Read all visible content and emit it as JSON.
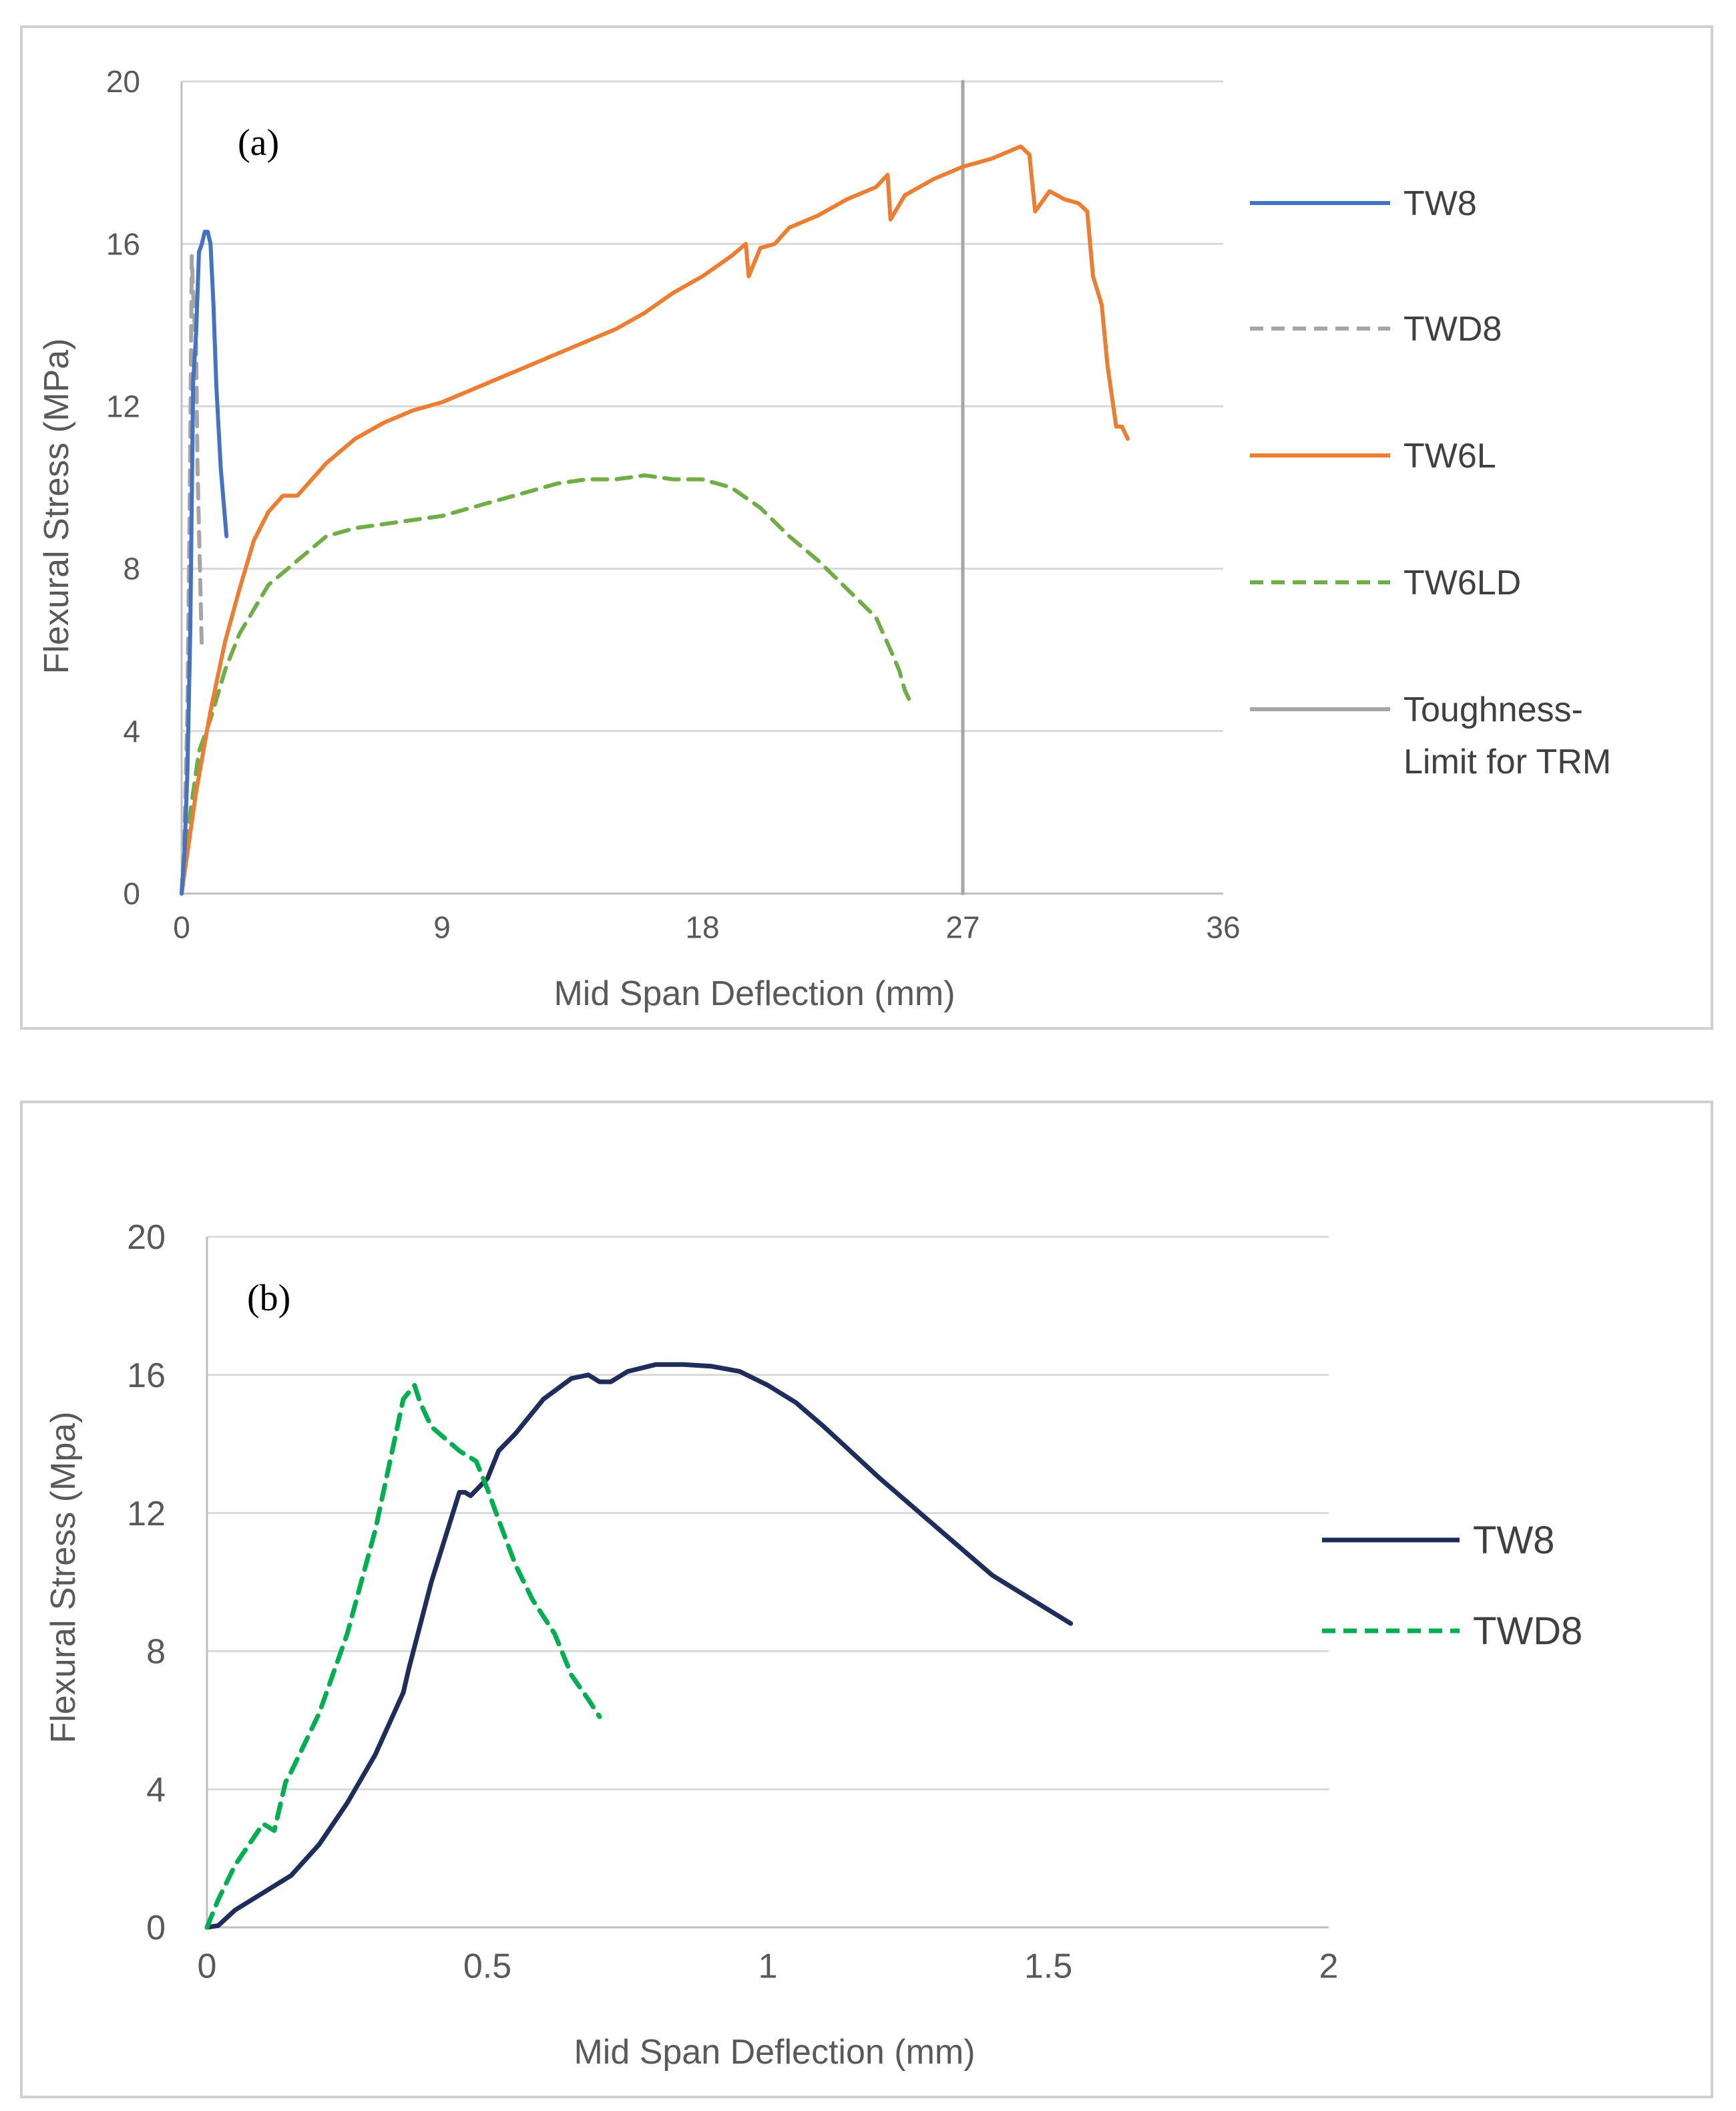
{
  "chart_data": [
    {
      "type": "line",
      "panel_label": "(a)",
      "xlabel": "Mid Span Deflection (mm)",
      "ylabel": "Flexural Stress (MPa)",
      "xlim": [
        0,
        36
      ],
      "ylim": [
        0,
        20
      ],
      "xticks": [
        "0",
        "9",
        "18",
        "27",
        "36"
      ],
      "yticks": [
        "0",
        "4",
        "8",
        "12",
        "16",
        "20"
      ],
      "grid": "horizontal",
      "legend_position": "right",
      "series": [
        {
          "name": "TW8",
          "color": "#4472C4",
          "dash": "solid",
          "x": [
            0,
            0.1,
            0.2,
            0.3,
            0.4,
            0.5,
            0.6,
            0.7,
            0.8,
            0.9,
            1.0,
            1.1,
            1.2,
            1.35,
            1.55
          ],
          "y": [
            0,
            1.0,
            3.0,
            6.5,
            12.6,
            13.8,
            15.8,
            16.0,
            16.3,
            16.3,
            16.0,
            14.5,
            12.5,
            10.5,
            8.8
          ]
        },
        {
          "name": "TWD8",
          "color": "#A5A5A5",
          "dash": "dashed",
          "x": [
            0,
            0.1,
            0.2,
            0.3,
            0.35,
            0.4,
            0.45,
            0.5,
            0.55,
            0.6,
            0.65,
            0.7
          ],
          "y": [
            0,
            1.5,
            4.5,
            11.0,
            15.7,
            14.8,
            14.0,
            13.5,
            10.5,
            9.0,
            7.5,
            6.0
          ]
        },
        {
          "name": "TW6L",
          "color": "#ED7D31",
          "dash": "solid",
          "x": [
            0,
            0.5,
            1,
            1.5,
            2,
            2.5,
            3,
            3.5,
            4,
            5,
            6,
            7,
            8,
            9,
            10,
            11,
            12,
            13,
            14,
            15,
            16,
            17,
            18,
            19,
            19.5,
            19.6,
            20,
            20.5,
            21,
            22,
            23,
            24,
            24.4,
            24.5,
            25,
            26,
            27,
            28,
            29,
            29.3,
            29.5,
            30,
            30.5,
            31,
            31.3,
            31.5,
            31.8,
            32,
            32.3,
            32.5,
            32.7
          ],
          "y": [
            0,
            2.5,
            4.5,
            6.2,
            7.5,
            8.7,
            9.4,
            9.8,
            9.8,
            10.6,
            11.2,
            11.6,
            11.9,
            12.1,
            12.4,
            12.7,
            13.0,
            13.3,
            13.6,
            13.9,
            14.3,
            14.8,
            15.2,
            15.7,
            16.0,
            15.2,
            15.9,
            16.0,
            16.4,
            16.7,
            17.1,
            17.4,
            17.7,
            16.6,
            17.2,
            17.6,
            17.9,
            18.1,
            18.4,
            18.2,
            16.8,
            17.3,
            17.1,
            17.0,
            16.8,
            15.2,
            14.5,
            13.0,
            11.5,
            11.5,
            11.2
          ]
        },
        {
          "name": "TW6LD",
          "color": "#70AD47",
          "dash": "dashed",
          "x": [
            0,
            0.3,
            0.6,
            1,
            1.5,
            2,
            2.5,
            3,
            3.5,
            4,
            5,
            6,
            7,
            8,
            9,
            10,
            11,
            12,
            13,
            14,
            15,
            16,
            17,
            18,
            19,
            20,
            21,
            22,
            23,
            24,
            24.5,
            24.8,
            25.0,
            25.2
          ],
          "y": [
            0,
            2.0,
            3.5,
            4.3,
            5.5,
            6.4,
            7.0,
            7.6,
            7.9,
            8.2,
            8.8,
            9.0,
            9.1,
            9.2,
            9.3,
            9.5,
            9.7,
            9.9,
            10.1,
            10.2,
            10.2,
            10.3,
            10.2,
            10.2,
            10.0,
            9.5,
            8.8,
            8.2,
            7.5,
            6.8,
            6.0,
            5.5,
            5.0,
            4.7
          ]
        },
        {
          "name": "Toughness-Limit for TRM",
          "color": "#A6A6A6",
          "dash": "solid",
          "x": [
            27,
            27
          ],
          "y": [
            0,
            20
          ]
        }
      ],
      "legend_labels": [
        "TW8",
        "TWD8",
        "TW6L",
        "TW6LD",
        "Toughness-",
        "Limit for TRM"
      ]
    },
    {
      "type": "line",
      "panel_label": "(b)",
      "xlabel": "Mid Span Deflection (mm)",
      "ylabel": "Flexural Stress (Mpa)",
      "xlim": [
        0,
        2
      ],
      "ylim": [
        0,
        20
      ],
      "xticks": [
        "0",
        "0.5",
        "1",
        "1.5",
        "2"
      ],
      "yticks": [
        "0",
        "4",
        "8",
        "12",
        "16",
        "20"
      ],
      "grid": "horizontal",
      "legend_position": "right",
      "series": [
        {
          "name": "TW8",
          "color": "#1F2D5C",
          "dash": "solid",
          "x": [
            0,
            0.02,
            0.05,
            0.1,
            0.15,
            0.2,
            0.25,
            0.3,
            0.35,
            0.36,
            0.4,
            0.45,
            0.46,
            0.47,
            0.5,
            0.52,
            0.55,
            0.6,
            0.65,
            0.68,
            0.7,
            0.72,
            0.75,
            0.8,
            0.85,
            0.9,
            0.95,
            1.0,
            1.05,
            1.1,
            1.2,
            1.3,
            1.4,
            1.5,
            1.54
          ],
          "y": [
            0,
            0.05,
            0.5,
            1.0,
            1.5,
            2.4,
            3.6,
            5.0,
            6.8,
            7.5,
            10.0,
            12.6,
            12.6,
            12.5,
            13.0,
            13.8,
            14.3,
            15.3,
            15.9,
            16.0,
            15.8,
            15.8,
            16.1,
            16.3,
            16.3,
            16.25,
            16.1,
            15.7,
            15.2,
            14.5,
            13.0,
            11.6,
            10.2,
            9.2,
            8.8
          ]
        },
        {
          "name": "TWD8",
          "color": "#00B050",
          "dash": "dashed",
          "x": [
            0,
            0.02,
            0.05,
            0.1,
            0.12,
            0.14,
            0.15,
            0.2,
            0.25,
            0.3,
            0.35,
            0.37,
            0.38,
            0.4,
            0.45,
            0.48,
            0.5,
            0.52,
            0.55,
            0.58,
            0.62,
            0.65,
            0.68,
            0.7
          ],
          "y": [
            0,
            0.8,
            1.8,
            3.0,
            2.8,
            4.2,
            4.5,
            6.2,
            8.5,
            11.5,
            15.3,
            15.7,
            15.2,
            14.5,
            13.8,
            13.5,
            12.7,
            11.8,
            10.5,
            9.5,
            8.5,
            7.3,
            6.6,
            6.1
          ]
        }
      ],
      "legend_labels": [
        "TW8",
        "TWD8"
      ]
    }
  ]
}
